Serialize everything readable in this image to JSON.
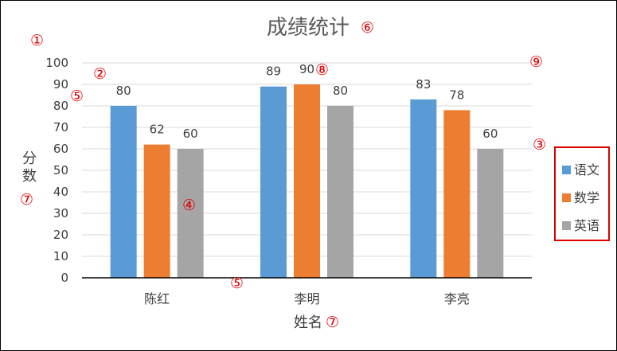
{
  "chart_data": {
    "type": "bar",
    "title": "成绩统计",
    "xlabel": "姓名",
    "ylabel": "分数",
    "categories": [
      "陈红",
      "李明",
      "李亮"
    ],
    "series": [
      {
        "name": "语文",
        "color": "#5b9bd5",
        "values": [
          80,
          89,
          83
        ]
      },
      {
        "name": "数学",
        "color": "#ed7d31",
        "values": [
          62,
          90,
          78
        ]
      },
      {
        "name": "英语",
        "color": "#a5a5a5",
        "values": [
          60,
          80,
          60
        ]
      }
    ],
    "ylim": [
      0,
      100
    ],
    "yticks": [
      "0",
      "10",
      "20",
      "30",
      "40",
      "50",
      "60",
      "70",
      "80",
      "90",
      "100"
    ],
    "grid": true,
    "legend_position": "right",
    "legend_border_color": "#e00000"
  },
  "annotations": {
    "chart_area": "①",
    "plot_area": "②",
    "legend": "③",
    "data_series": "④",
    "axis": "⑤",
    "axis_y": "⑤",
    "chart_title": "⑥",
    "axis_title_y": "⑦",
    "axis_title_x": "⑦",
    "data_label": "⑧",
    "gridline": "⑨"
  }
}
